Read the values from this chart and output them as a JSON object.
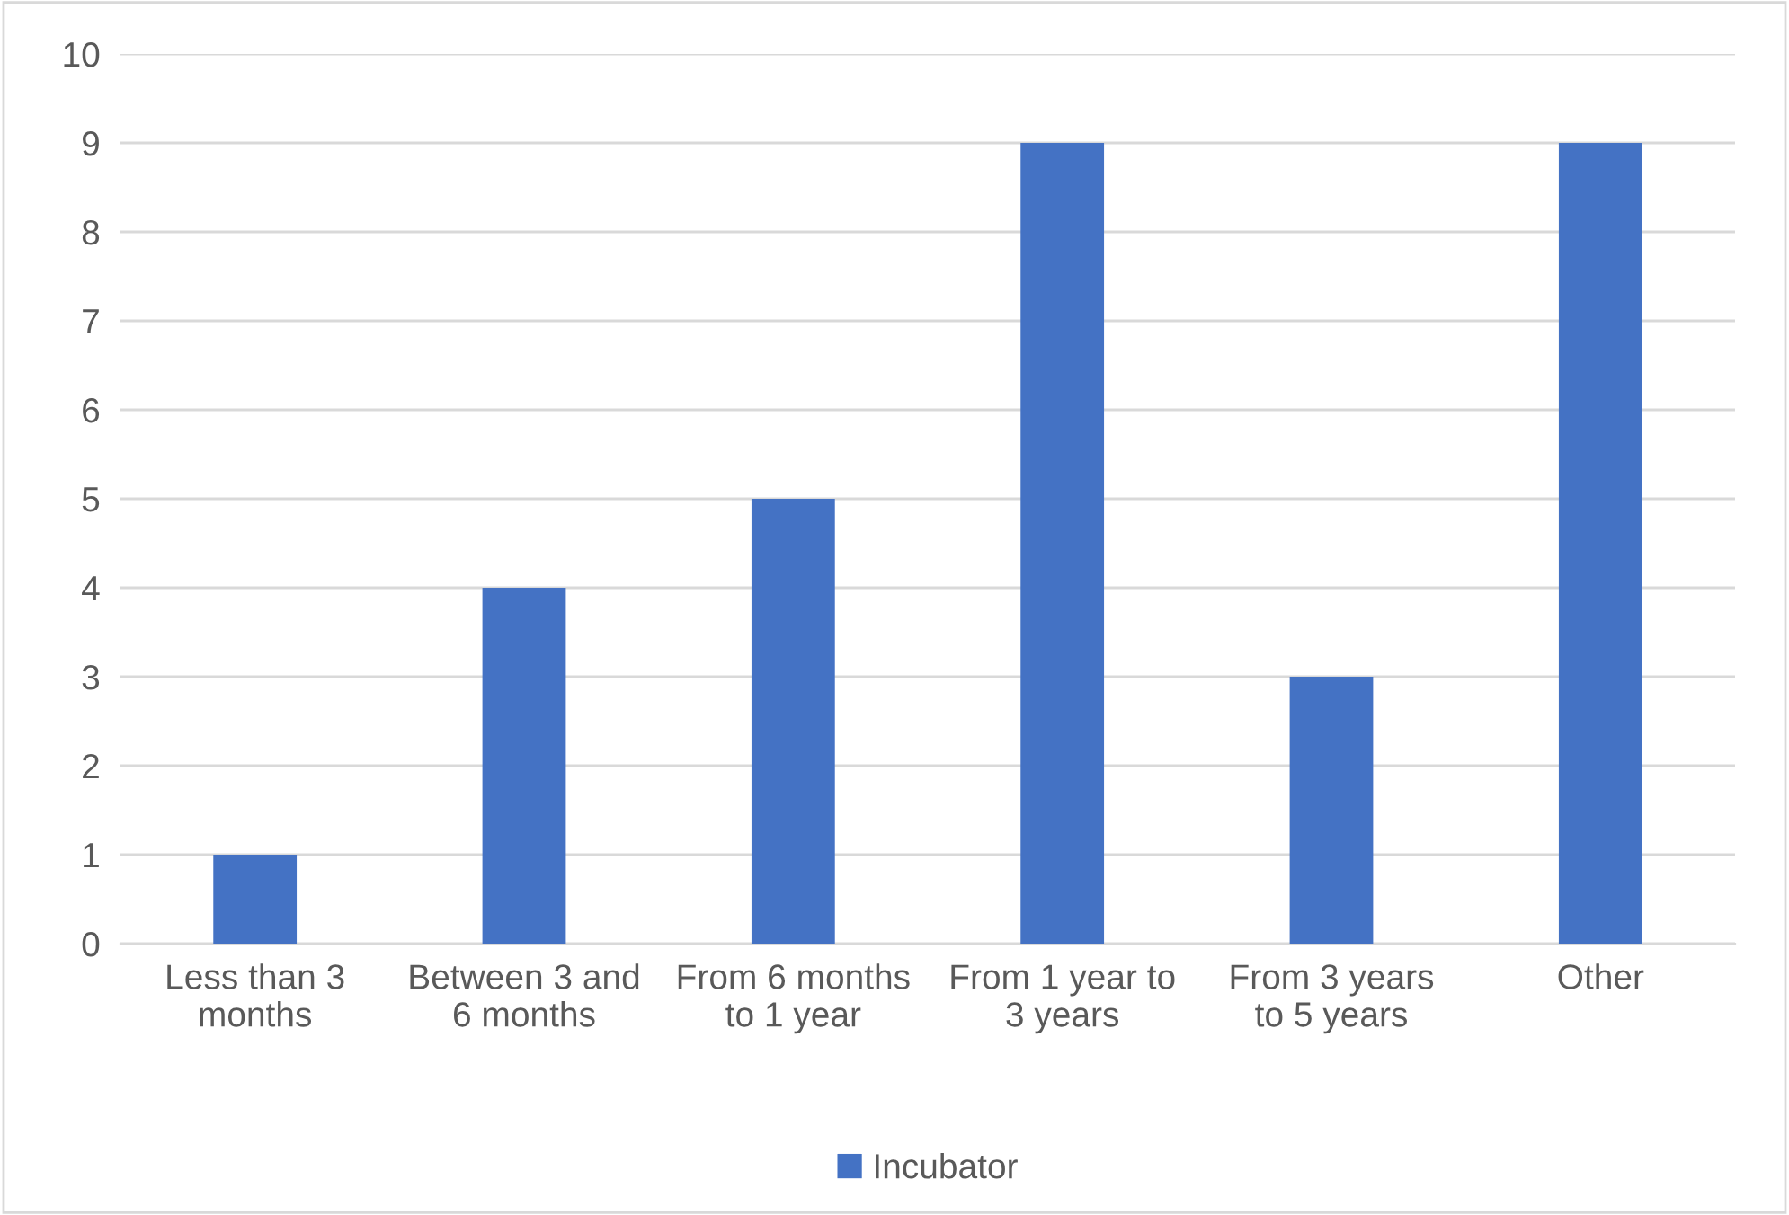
{
  "chart_data": {
    "type": "bar",
    "categories": [
      "Less than 3 months",
      "Between 3 and 6 months",
      "From 6 months to 1 year",
      "From 1 year to 3 years",
      "From 3 years to 5 years",
      "Other"
    ],
    "series": [
      {
        "name": "Incubator",
        "color": "#4472c4",
        "values": [
          1,
          4,
          5,
          9,
          3,
          9
        ]
      }
    ],
    "ylim": [
      0,
      10
    ],
    "yticks": [
      0,
      1,
      2,
      3,
      4,
      5,
      6,
      7,
      8,
      9,
      10
    ],
    "grid": "y",
    "legend": "bottom"
  }
}
